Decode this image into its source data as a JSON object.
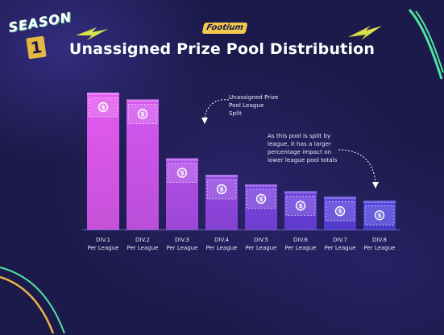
{
  "brand": {
    "tagline": "Footium",
    "badge_word": "SEASON",
    "badge_number": "1"
  },
  "chart_data": {
    "type": "bar",
    "title": "Unassigned Prize Pool Distribution",
    "categories": [
      "DIV.1\nPer League",
      "DIV.2\nPer League",
      "DIV.3\nPer League",
      "DIV.4\nPer League",
      "DIV.5\nPer League",
      "DIV.6\nPer League",
      "DIV.7\nPer League",
      "DIV.8\nPer League"
    ],
    "values": [
      100,
      95,
      52,
      40,
      33,
      28,
      24,
      21
    ],
    "ylim": [
      0,
      100
    ],
    "bar_colors": [
      "#e35af0",
      "#d457ef",
      "#b24fea",
      "#9547e5",
      "#7b42e0",
      "#6a3fdf",
      "#5a3edd",
      "#4a40dd"
    ],
    "annotations": [
      {
        "id": "league-split",
        "text": "Unassigned Prize\nPool League\nSplit"
      },
      {
        "id": "impact",
        "text": "As this pool is split by\nleague, it has a larger\npercentage impact on\nlower league pool totals"
      }
    ]
  }
}
